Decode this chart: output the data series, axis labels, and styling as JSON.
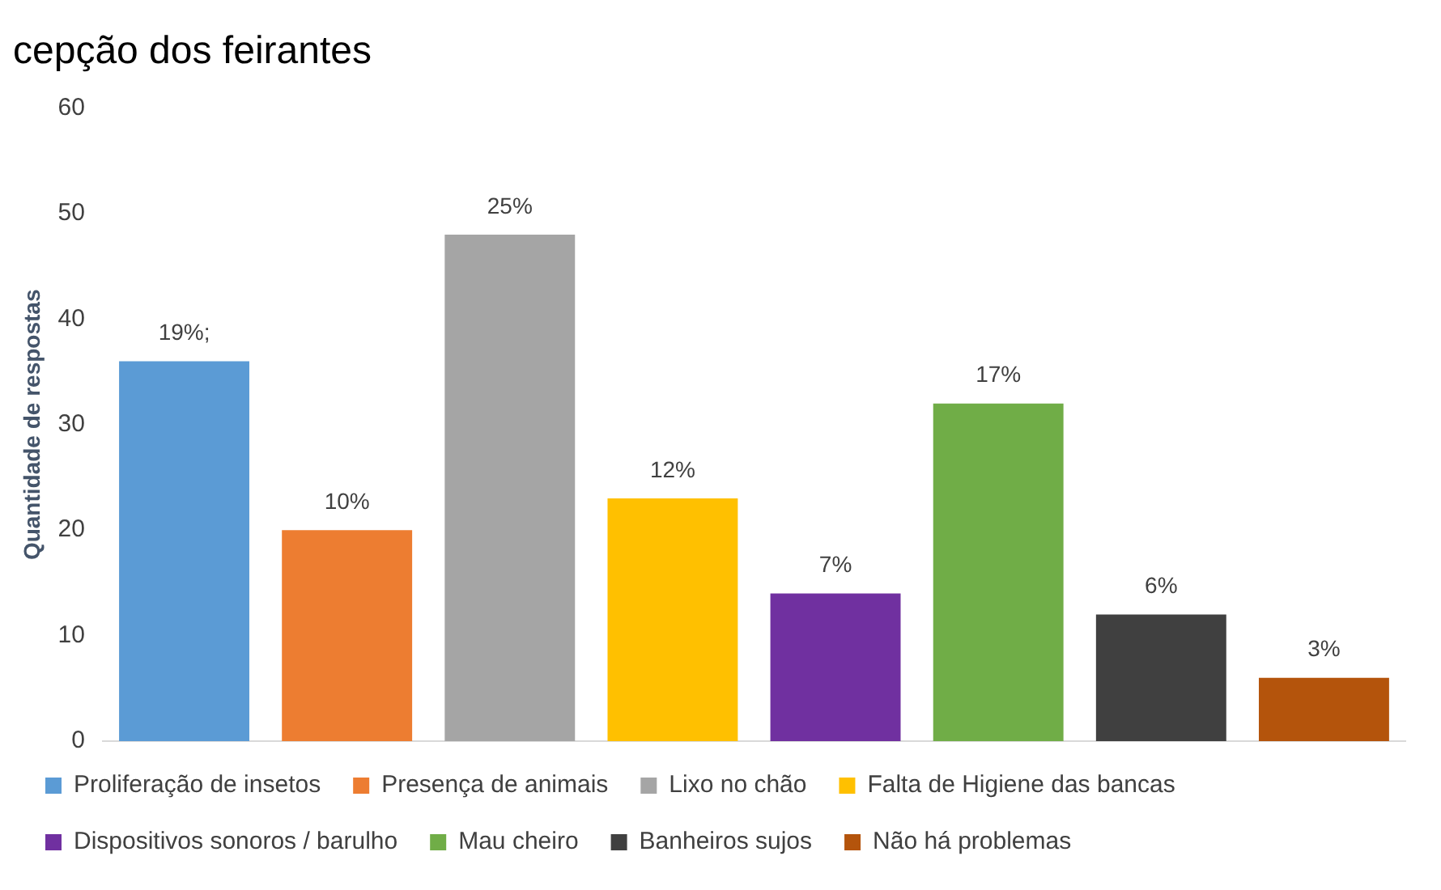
{
  "chart_data": {
    "type": "bar",
    "title": "cepção dos feirantes",
    "ylabel": "Quantidade de respostas",
    "categories": [
      null,
      null,
      null,
      null,
      null,
      null,
      null,
      null
    ],
    "series": [
      {
        "name": "Proliferação de insetos",
        "color": "#5b9bd5",
        "values": [
          36,
          null,
          null,
          null,
          null,
          null,
          null,
          null
        ]
      },
      {
        "name": "Presença de animais",
        "color": "#ed7d31",
        "values": [
          null,
          20,
          null,
          null,
          null,
          null,
          null,
          null
        ]
      },
      {
        "name": "Lixo no chão",
        "color": "#a5a5a5",
        "values": [
          null,
          null,
          48,
          null,
          null,
          null,
          null,
          null
        ]
      },
      {
        "name": "Falta de Higiene das bancas",
        "color": "#ffc000",
        "values": [
          null,
          null,
          null,
          23,
          null,
          null,
          null,
          null
        ]
      },
      {
        "name": "Dispositivos sonoros / barulho",
        "color": "#7030a0",
        "values": [
          null,
          null,
          null,
          null,
          14,
          null,
          null,
          null
        ]
      },
      {
        "name": "Mau cheiro",
        "color": "#70ad47",
        "values": [
          null,
          null,
          null,
          null,
          null,
          32,
          null,
          null
        ]
      },
      {
        "name": "Banheiros sujos",
        "color": "#404040",
        "values": [
          null,
          null,
          null,
          null,
          null,
          null,
          12,
          null
        ]
      },
      {
        "name": "Não há problemas",
        "color": "#b4540c",
        "values": [
          null,
          null,
          null,
          null,
          null,
          null,
          null,
          6
        ]
      }
    ],
    "annotations": [
      {
        "text": "19%;",
        "y": 36
      },
      {
        "text": "10%",
        "y": 20
      },
      {
        "text": "25%",
        "y": 48
      },
      {
        "text": "12%",
        "y": 23
      },
      {
        "text": "7%",
        "y": 14
      },
      {
        "text": "17%",
        "y": 32
      },
      {
        "text": "6%",
        "y": 12
      },
      {
        "text": "3%",
        "y": 6
      }
    ],
    "ylim": [
      0,
      60
    ],
    "yticks": [
      0,
      10,
      20,
      30,
      40,
      50,
      60
    ],
    "grid": false,
    "legend": "bottom"
  }
}
